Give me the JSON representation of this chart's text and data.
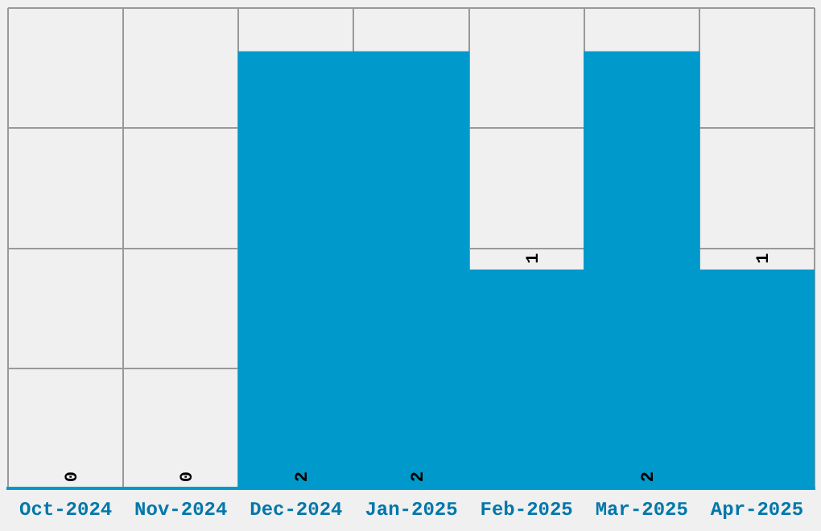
{
  "chart_data": {
    "type": "bar",
    "categories": [
      "Oct-2024",
      "Nov-2024",
      "Dec-2024",
      "Jan-2025",
      "Feb-2025",
      "Mar-2025",
      "Apr-2025"
    ],
    "values": [
      0,
      0,
      2,
      2,
      1,
      2,
      1
    ],
    "color": "#0099cc",
    "ylim": [
      0,
      2.2
    ],
    "yticks": [
      {
        "value": 0,
        "label": null
      },
      {
        "value": 0.55,
        "label": null
      },
      {
        "value": 1.1,
        "label": null
      },
      {
        "value": 1.65,
        "label": null
      },
      {
        "value": 2.2,
        "label": null
      }
    ],
    "grid": true,
    "tick_labels": "x",
    "data_labels": true
  }
}
